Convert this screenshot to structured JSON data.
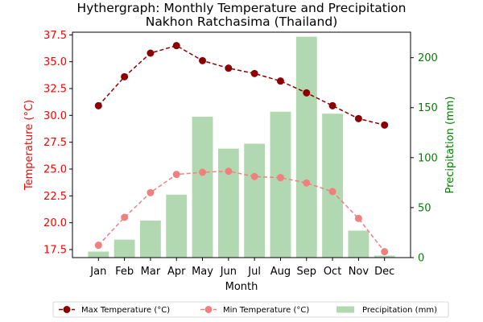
{
  "chart_data": {
    "type": "bar+line",
    "title": "Hythergraph: Monthly Temperature and Precipitation",
    "subtitle": "Nakhon Ratchasima (Thailand)",
    "xlabel": "Month",
    "ylabel_left": "Temperature (°C)",
    "ylabel_right": "Precipitation (mm)",
    "categories": [
      "Jan",
      "Feb",
      "Mar",
      "Apr",
      "May",
      "Jun",
      "Jul",
      "Aug",
      "Sep",
      "Oct",
      "Nov",
      "Dec"
    ],
    "ylim_left": [
      16.75,
      37.75
    ],
    "ylim_right": [
      0,
      225.5
    ],
    "yticks_left": [
      "17.5",
      "20.0",
      "22.5",
      "25.0",
      "27.5",
      "30.0",
      "32.5",
      "35.0",
      "37.5"
    ],
    "yticks_right": [
      "0",
      "50",
      "100",
      "150",
      "200"
    ],
    "grid": false,
    "legend_position": "bottom-center",
    "colors": {
      "max_temp": "#8b0000",
      "min_temp": "#f08080",
      "precip": "#b2d8b2",
      "left_axis": "#ff0000",
      "right_axis": "#008000"
    },
    "series": [
      {
        "name": "Max Temperature (°C)",
        "kind": "line",
        "axis": "left",
        "values": [
          30.9,
          33.6,
          35.8,
          36.5,
          35.1,
          34.4,
          33.9,
          33.2,
          32.1,
          30.9,
          29.7,
          29.1
        ]
      },
      {
        "name": "Min Temperature (°C)",
        "kind": "line",
        "axis": "left",
        "values": [
          17.9,
          20.5,
          22.8,
          24.5,
          24.7,
          24.8,
          24.3,
          24.2,
          23.7,
          22.9,
          20.4,
          17.3
        ]
      },
      {
        "name": "Precipitation (mm)",
        "kind": "bar",
        "axis": "right",
        "values": [
          6,
          18,
          37,
          63,
          141,
          109,
          114,
          146,
          221,
          144,
          27,
          2
        ]
      }
    ]
  }
}
